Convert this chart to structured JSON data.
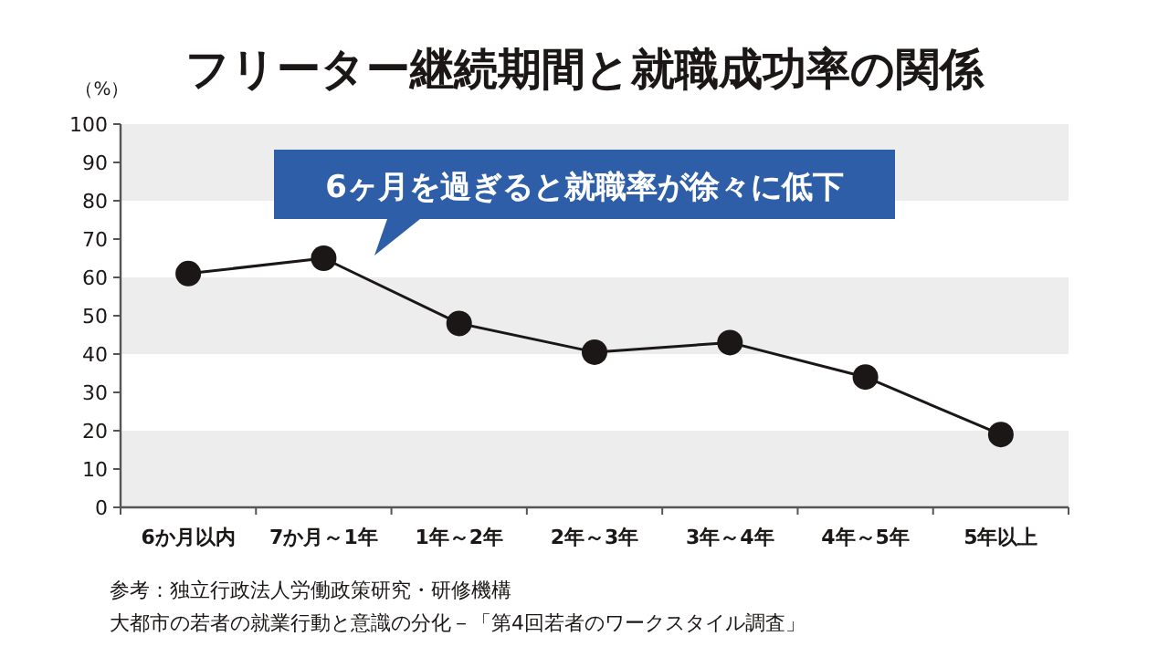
{
  "chart_data": {
    "type": "line",
    "title": "フリーター継続期間と就職成功率の関係",
    "ylabel": "（%）",
    "categories": [
      "6か月以内",
      "7か月～1年",
      "1年～2年",
      "2年～3年",
      "3年～4年",
      "4年～5年",
      "5年以上"
    ],
    "series": [
      {
        "color": "#1a1716",
        "values": [
          61,
          65,
          48,
          40.5,
          43,
          34,
          19
        ]
      }
    ],
    "ylim": [
      0,
      100
    ],
    "yticks": [
      0,
      10,
      20,
      30,
      40,
      50,
      60,
      70,
      80,
      90,
      100
    ],
    "marker": "circle",
    "line_style": "solid",
    "bands": [
      {
        "axis": "y",
        "from": 0,
        "to": 20,
        "color": "#ededed"
      },
      {
        "axis": "y",
        "from": 40,
        "to": 60,
        "color": "#ededed"
      },
      {
        "axis": "y",
        "from": 80,
        "to": 100,
        "color": "#ededed"
      }
    ],
    "annotations": [
      "6ヶ月を過ぎると就職率が徐々に低下",
      "参考：独立行政法人労働政策研究・研修機構",
      "大都市の若者の就業行動と意識の分化－「第4回若者のワークスタイル調査」"
    ]
  }
}
